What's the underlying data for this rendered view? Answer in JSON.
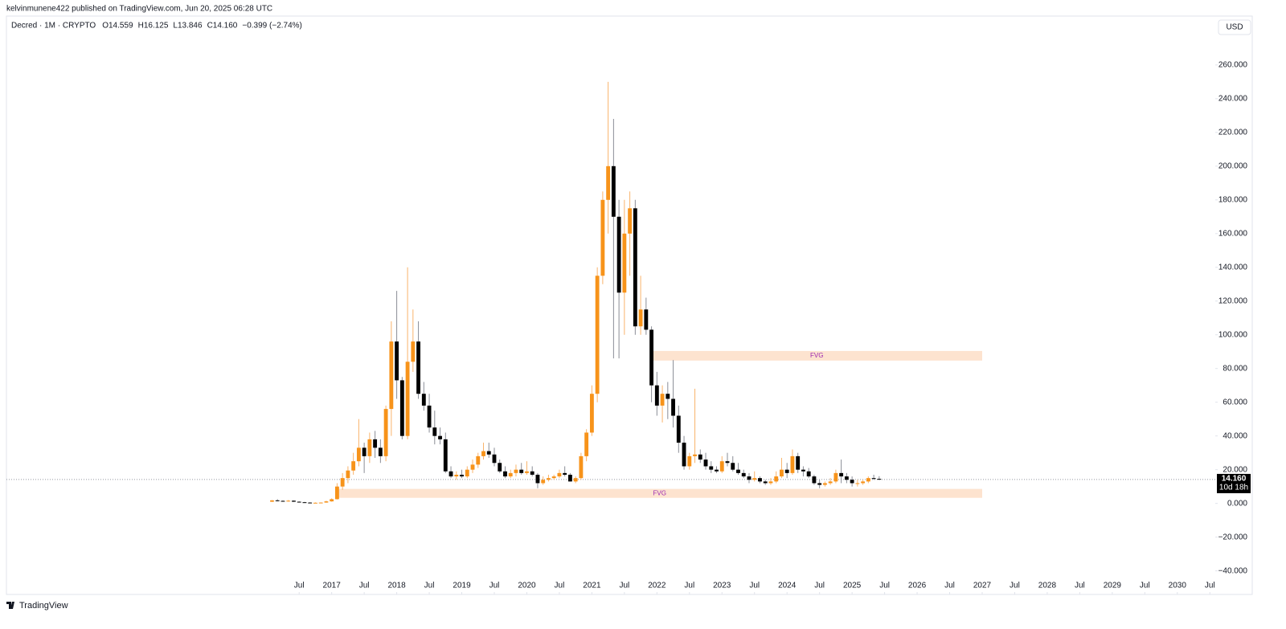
{
  "header": {
    "published": "kelvinmunene422 published on TradingView.com, Jun 20, 2025 06:28 UTC",
    "currency": "USD",
    "brand": "TradingView"
  },
  "chart_data": {
    "type": "candlestick",
    "legend": {
      "title": "Decred · 1M · CRYPTO",
      "open": "O14.559",
      "high": "H16.125",
      "low": "L13.846",
      "close": "C14.160",
      "change": "−0.399 (−2.74%)"
    },
    "last_price_label": "14.160",
    "countdown": "10d 18h",
    "up_color": "#f7931a",
    "down_color": "#000000",
    "up_wick_color": "#f9b36b",
    "down_wick_color": "#8a8d96",
    "x": [
      "2016-02",
      "2016-03",
      "2016-04",
      "2016-05",
      "2016-06",
      "2016-07",
      "2016-08",
      "2016-09",
      "2016-10",
      "2016-11",
      "2016-12",
      "2017-01",
      "2017-02",
      "2017-03",
      "2017-04",
      "2017-05",
      "2017-06",
      "2017-07",
      "2017-08",
      "2017-09",
      "2017-10",
      "2017-11",
      "2017-12",
      "2018-01",
      "2018-02",
      "2018-03",
      "2018-04",
      "2018-05",
      "2018-06",
      "2018-07",
      "2018-08",
      "2018-09",
      "2018-10",
      "2018-11",
      "2018-12",
      "2019-01",
      "2019-02",
      "2019-03",
      "2019-04",
      "2019-05",
      "2019-06",
      "2019-07",
      "2019-08",
      "2019-09",
      "2019-10",
      "2019-11",
      "2019-12",
      "2020-01",
      "2020-02",
      "2020-03",
      "2020-04",
      "2020-05",
      "2020-06",
      "2020-07",
      "2020-08",
      "2020-09",
      "2020-10",
      "2020-11",
      "2020-12",
      "2021-01",
      "2021-02",
      "2021-03",
      "2021-04",
      "2021-05",
      "2021-06",
      "2021-07",
      "2021-08",
      "2021-09",
      "2021-10",
      "2021-11",
      "2021-12",
      "2022-01",
      "2022-02",
      "2022-03",
      "2022-04",
      "2022-05",
      "2022-06",
      "2022-07",
      "2022-08",
      "2022-09",
      "2022-10",
      "2022-11",
      "2022-12",
      "2023-01",
      "2023-02",
      "2023-03",
      "2023-04",
      "2023-05",
      "2023-06",
      "2023-07",
      "2023-08",
      "2023-09",
      "2023-10",
      "2023-11",
      "2023-12",
      "2024-01",
      "2024-02",
      "2024-03",
      "2024-04",
      "2024-05",
      "2024-06",
      "2024-07",
      "2024-08",
      "2024-09",
      "2024-10",
      "2024-11",
      "2024-12",
      "2025-01",
      "2025-02",
      "2025-03",
      "2025-04",
      "2025-05",
      "2025-06"
    ],
    "open": [
      1.0,
      1.8,
      1.5,
      1.2,
      1.6,
      1.0,
      0.7,
      0.5,
      0.4,
      0.4,
      0.5,
      1.2,
      2.5,
      10,
      15,
      19.5,
      25,
      33,
      28,
      38,
      33,
      28,
      56,
      96,
      73,
      40,
      84,
      96,
      65,
      58,
      45,
      40,
      38,
      19,
      16,
      17,
      16,
      20,
      23,
      28,
      31,
      29,
      24,
      19,
      16,
      18,
      20,
      18,
      19,
      17,
      12,
      14,
      15,
      16,
      18,
      17,
      13,
      15,
      28,
      42,
      65,
      135,
      180,
      200,
      170,
      125,
      160,
      175,
      105,
      115,
      103,
      70,
      58,
      65,
      62,
      52,
      36,
      22,
      28,
      29,
      26,
      22,
      20,
      19,
      25,
      24,
      20,
      18,
      16,
      14,
      15,
      13,
      12,
      13,
      16,
      20,
      18,
      28,
      20,
      19,
      16,
      12,
      11,
      12,
      13,
      18,
      16,
      14,
      12,
      12,
      13,
      15,
      14.559
    ],
    "high": [
      2.0,
      2.5,
      1.8,
      2.0,
      1.8,
      1.2,
      0.9,
      0.7,
      0.6,
      0.6,
      1.6,
      3,
      12,
      18,
      22,
      30,
      50,
      36,
      42,
      43,
      38,
      58,
      108,
      126,
      75,
      140,
      115,
      108,
      72,
      65,
      55,
      45,
      42,
      22,
      19,
      20,
      22,
      26,
      30,
      36,
      36,
      33,
      26,
      22,
      20,
      23,
      24,
      25,
      22,
      18,
      16,
      17,
      17,
      20,
      22,
      18,
      16,
      30,
      44,
      70,
      140,
      185,
      250,
      228,
      180,
      180,
      185,
      180,
      135,
      122,
      105,
      78,
      70,
      72,
      85,
      58,
      40,
      30,
      68,
      32,
      30,
      25,
      22,
      28,
      30,
      28,
      24,
      20,
      18,
      19,
      16,
      14,
      15,
      19,
      27,
      24,
      32,
      30,
      22,
      21,
      17,
      14,
      13,
      15,
      20,
      26,
      18,
      16,
      14,
      14,
      16,
      17,
      16.125
    ],
    "low": [
      0.8,
      1.2,
      1.0,
      1.0,
      0.9,
      0.6,
      0.4,
      0.3,
      0.3,
      0.3,
      0.4,
      1,
      2.3,
      8,
      12,
      17,
      22,
      18,
      24,
      27,
      24,
      25,
      40,
      62,
      38,
      38,
      78,
      62,
      55,
      42,
      35,
      35,
      18,
      15,
      14,
      15,
      15,
      18,
      21,
      26,
      27,
      22,
      18,
      15,
      15,
      16,
      17,
      17,
      16,
      9,
      11,
      13,
      14,
      15,
      16,
      13,
      12,
      14,
      25,
      40,
      60,
      130,
      160,
      86,
      86,
      100,
      135,
      100,
      100,
      100,
      60,
      52,
      48,
      50,
      45,
      30,
      20,
      20,
      24,
      24,
      20,
      18,
      18,
      18,
      22,
      19,
      17,
      15,
      12,
      13,
      12,
      11,
      11,
      12,
      15,
      15,
      17,
      18,
      16,
      15,
      11,
      9,
      10,
      11,
      12,
      12,
      12,
      10,
      10,
      11,
      12,
      14,
      13.846
    ],
    "close": [
      1.8,
      1.5,
      1.2,
      1.6,
      1.0,
      0.7,
      0.5,
      0.4,
      0.4,
      0.5,
      1.2,
      2.5,
      10,
      15,
      19.5,
      25,
      33,
      28,
      38,
      33,
      28,
      56,
      96,
      73,
      40,
      84,
      96,
      65,
      58,
      45,
      40,
      38,
      19,
      16,
      17,
      16,
      20,
      23,
      28,
      31,
      29,
      24,
      19,
      16,
      18,
      20,
      18,
      19,
      17,
      12,
      14,
      15,
      16,
      18,
      17,
      13,
      15,
      28,
      42,
      65,
      135,
      180,
      200,
      170,
      125,
      160,
      175,
      105,
      115,
      103,
      70,
      58,
      65,
      62,
      52,
      36,
      22,
      28,
      29,
      26,
      22,
      20,
      19,
      25,
      24,
      20,
      18,
      16,
      14,
      15,
      13,
      12,
      13,
      16,
      20,
      18,
      28,
      20,
      19,
      16,
      12,
      11,
      12,
      13,
      18,
      16,
      14,
      12,
      12,
      13,
      15,
      14.559,
      14.16
    ],
    "zones": [
      {
        "label": "FVG",
        "x": [
          "2021-12",
          "2027-01"
        ],
        "y": [
          84.7,
          90.4
        ],
        "color": "#fde3cf"
      },
      {
        "label": "FVG",
        "x": [
          "2017-02",
          "2027-01"
        ],
        "y": [
          3.3,
          8.6
        ],
        "color": "#fde3cf"
      }
    ],
    "zone_label_color": "#9c27b0",
    "xlim": [
      "2012-01",
      "2030-08"
    ],
    "xticks": [
      {
        "value": "2016-07",
        "label": "Jul"
      },
      {
        "value": "2017-01",
        "label": "2017"
      },
      {
        "value": "2017-07",
        "label": "Jul"
      },
      {
        "value": "2018-01",
        "label": "2018"
      },
      {
        "value": "2018-07",
        "label": "Jul"
      },
      {
        "value": "2019-01",
        "label": "2019"
      },
      {
        "value": "2019-07",
        "label": "Jul"
      },
      {
        "value": "2020-01",
        "label": "2020"
      },
      {
        "value": "2020-07",
        "label": "Jul"
      },
      {
        "value": "2021-01",
        "label": "2021"
      },
      {
        "value": "2021-07",
        "label": "Jul"
      },
      {
        "value": "2022-01",
        "label": "2022"
      },
      {
        "value": "2022-07",
        "label": "Jul"
      },
      {
        "value": "2023-01",
        "label": "2023"
      },
      {
        "value": "2023-07",
        "label": "Jul"
      },
      {
        "value": "2024-01",
        "label": "2024"
      },
      {
        "value": "2024-07",
        "label": "Jul"
      },
      {
        "value": "2025-01",
        "label": "2025"
      },
      {
        "value": "2025-07",
        "label": "Jul"
      },
      {
        "value": "2026-01",
        "label": "2026"
      },
      {
        "value": "2026-07",
        "label": "Jul"
      },
      {
        "value": "2027-01",
        "label": "2027"
      },
      {
        "value": "2027-07",
        "label": "Jul"
      },
      {
        "value": "2028-01",
        "label": "2028"
      },
      {
        "value": "2028-07",
        "label": "Jul"
      },
      {
        "value": "2029-01",
        "label": "2029"
      },
      {
        "value": "2029-07",
        "label": "Jul"
      },
      {
        "value": "2030-01",
        "label": "2030"
      },
      {
        "value": "2030-07",
        "label": "Jul"
      }
    ],
    "ylim": [
      -54,
      289
    ],
    "yticks": [
      {
        "value": -40,
        "label": "−40.000"
      },
      {
        "value": -20,
        "label": "−20.000"
      },
      {
        "value": 0,
        "label": "0.000"
      },
      {
        "value": 20,
        "label": "20.000"
      },
      {
        "value": 40,
        "label": "40.000"
      },
      {
        "value": 60,
        "label": "60.000"
      },
      {
        "value": 80,
        "label": "80.000"
      },
      {
        "value": 100,
        "label": "100.000"
      },
      {
        "value": 120,
        "label": "120.000"
      },
      {
        "value": 140,
        "label": "140.000"
      },
      {
        "value": 160,
        "label": "160.000"
      },
      {
        "value": 180,
        "label": "180.000"
      },
      {
        "value": 200,
        "label": "200.000"
      },
      {
        "value": 220,
        "label": "220.000"
      },
      {
        "value": 240,
        "label": "240.000"
      },
      {
        "value": 260,
        "label": "260.000"
      }
    ],
    "grid": false
  }
}
